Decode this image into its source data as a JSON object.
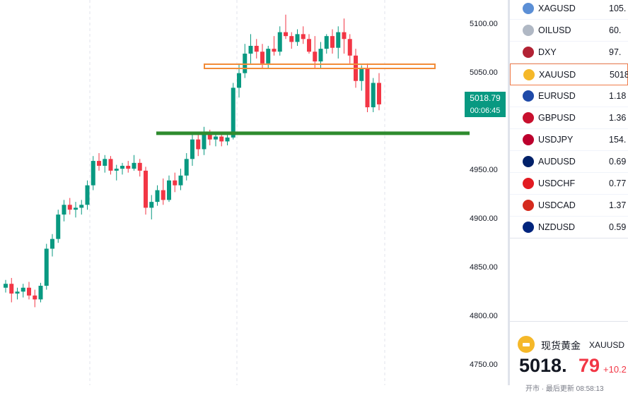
{
  "price_axis": {
    "ticks": [
      "5100.00",
      "5050.00",
      "4950.00",
      "4900.00",
      "4850.00",
      "4800.00",
      "4750.00"
    ],
    "current_price": "5018.79",
    "countdown": "00:06:45"
  },
  "watchlist": [
    {
      "symbol": "XAGUSD",
      "value": "105.",
      "icon": "silver-icon",
      "color": "#5b8fd6"
    },
    {
      "symbol": "OILUSD",
      "value": "60.",
      "icon": "oil-icon",
      "color": "#b0b8c4"
    },
    {
      "symbol": "DXY",
      "value": "97.",
      "icon": "us-flag-icon",
      "color": "#b22234"
    },
    {
      "symbol": "XAUUSD",
      "value": "5018",
      "icon": "gold-icon",
      "color": "#f5b829",
      "selected": true
    },
    {
      "symbol": "EURUSD",
      "value": "1.18",
      "icon": "eu-flag-icon",
      "color": "#1f4aa8"
    },
    {
      "symbol": "GBPUSD",
      "value": "1.36",
      "icon": "uk-flag-icon",
      "color": "#c8102e"
    },
    {
      "symbol": "USDJPY",
      "value": "154.",
      "icon": "us-jp-flag-icon",
      "color": "#bc002d"
    },
    {
      "symbol": "AUDUSD",
      "value": "0.69",
      "icon": "au-flag-icon",
      "color": "#012169"
    },
    {
      "symbol": "USDCHF",
      "value": "0.77",
      "icon": "us-ch-flag-icon",
      "color": "#e21b22"
    },
    {
      "symbol": "USDCAD",
      "value": "1.37",
      "icon": "us-ca-flag-icon",
      "color": "#d52b1e"
    },
    {
      "symbol": "NZDUSD",
      "value": "0.59",
      "icon": "nz-flag-icon",
      "color": "#00247d"
    }
  ],
  "detail": {
    "name": "现货黄金",
    "symbol": "XAUUSD",
    "price_int": "5018.",
    "price_dec": "79",
    "change": "+10.2",
    "bottom_text": "开市 · 最后更新 08:58:13"
  },
  "chart_data": {
    "type": "candlestick",
    "ylim": [
      4730,
      5125
    ],
    "y_ticks": [
      5100,
      5050,
      4950,
      4900,
      4850,
      4800,
      4750
    ],
    "colors": {
      "up": "#089981",
      "down": "#f23645"
    },
    "resistance_level": 5057,
    "support_level": 4988,
    "candles": [
      [
        4830,
        4838,
        4825,
        4834
      ],
      [
        4834,
        4840,
        4815,
        4824
      ],
      [
        4824,
        4830,
        4818,
        4826
      ],
      [
        4826,
        4834,
        4820,
        4830
      ],
      [
        4830,
        4836,
        4818,
        4822
      ],
      [
        4822,
        4828,
        4810,
        4818
      ],
      [
        4818,
        4835,
        4815,
        4832
      ],
      [
        4832,
        4875,
        4828,
        4870
      ],
      [
        4870,
        4885,
        4862,
        4880
      ],
      [
        4880,
        4910,
        4876,
        4905
      ],
      [
        4905,
        4920,
        4898,
        4915
      ],
      [
        4915,
        4922,
        4905,
        4910
      ],
      [
        4910,
        4918,
        4902,
        4912
      ],
      [
        4912,
        4920,
        4905,
        4915
      ],
      [
        4915,
        4940,
        4910,
        4935
      ],
      [
        4935,
        4965,
        4930,
        4960
      ],
      [
        4960,
        4968,
        4950,
        4955
      ],
      [
        4955,
        4966,
        4948,
        4962
      ],
      [
        4962,
        4965,
        4946,
        4950
      ],
      [
        4950,
        4956,
        4940,
        4952
      ],
      [
        4952,
        4958,
        4946,
        4955
      ],
      [
        4955,
        4960,
        4948,
        4952
      ],
      [
        4952,
        4966,
        4950,
        4958
      ],
      [
        4958,
        4962,
        4944,
        4950
      ],
      [
        4950,
        4954,
        4905,
        4912
      ],
      [
        4912,
        4925,
        4900,
        4918
      ],
      [
        4918,
        4935,
        4914,
        4930
      ],
      [
        4930,
        4942,
        4915,
        4920
      ],
      [
        4920,
        4945,
        4918,
        4940
      ],
      [
        4940,
        4948,
        4928,
        4935
      ],
      [
        4935,
        4952,
        4930,
        4945
      ],
      [
        4945,
        4968,
        4940,
        4962
      ],
      [
        4962,
        4988,
        4955,
        4982
      ],
      [
        4982,
        4990,
        4965,
        4972
      ],
      [
        4972,
        4995,
        4966,
        4988
      ],
      [
        4988,
        4992,
        4976,
        4982
      ],
      [
        4982,
        4990,
        4975,
        4985
      ],
      [
        4985,
        4988,
        4975,
        4980
      ],
      [
        4980,
        4988,
        4976,
        4984
      ],
      [
        4984,
        5040,
        4982,
        5035
      ],
      [
        5035,
        5060,
        5025,
        5050
      ],
      [
        5050,
        5080,
        5045,
        5070
      ],
      [
        5070,
        5090,
        5060,
        5078
      ],
      [
        5078,
        5085,
        5065,
        5072
      ],
      [
        5072,
        5080,
        5055,
        5060
      ],
      [
        5060,
        5078,
        5055,
        5075
      ],
      [
        5075,
        5088,
        5068,
        5072
      ],
      [
        5072,
        5098,
        5068,
        5092
      ],
      [
        5092,
        5110,
        5085,
        5088
      ],
      [
        5088,
        5092,
        5075,
        5082
      ],
      [
        5082,
        5095,
        5078,
        5090
      ],
      [
        5090,
        5098,
        5080,
        5085
      ],
      [
        5085,
        5090,
        5070,
        5072
      ],
      [
        5072,
        5088,
        5055,
        5062
      ],
      [
        5062,
        5082,
        5055,
        5075
      ],
      [
        5075,
        5090,
        5070,
        5088
      ],
      [
        5088,
        5095,
        5070,
        5076
      ],
      [
        5076,
        5098,
        5065,
        5092
      ],
      [
        5092,
        5106,
        5070,
        5085
      ],
      [
        5085,
        5090,
        5060,
        5068
      ],
      [
        5068,
        5075,
        5035,
        5042
      ],
      [
        5042,
        5058,
        5032,
        5055
      ],
      [
        5055,
        5060,
        5010,
        5015
      ],
      [
        5015,
        5045,
        5010,
        5040
      ],
      [
        5040,
        5050,
        5012,
        5018
      ]
    ]
  }
}
